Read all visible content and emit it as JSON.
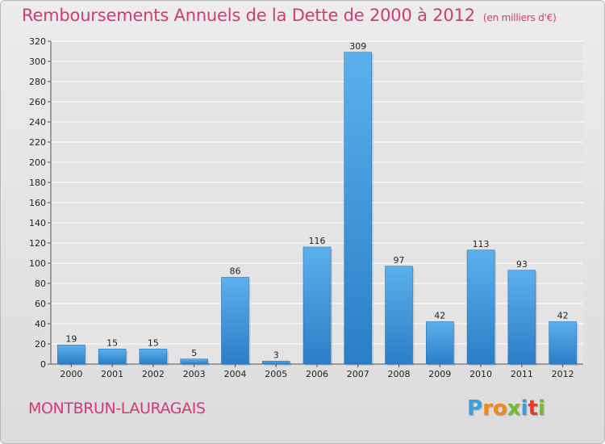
{
  "chart_data": {
    "type": "bar",
    "title": "Remboursements Annuels de la Dette de 2000 à 2012",
    "unit": "(en milliers d'€)",
    "categories": [
      "2000",
      "2001",
      "2002",
      "2003",
      "2004",
      "2005",
      "2006",
      "2007",
      "2008",
      "2009",
      "2010",
      "2011",
      "2012"
    ],
    "values": [
      19,
      15,
      15,
      5,
      86,
      3,
      116,
      309,
      97,
      42,
      113,
      93,
      42
    ],
    "yticks": [
      0,
      20,
      40,
      60,
      80,
      100,
      120,
      140,
      160,
      180,
      200,
      220,
      240,
      260,
      280,
      300,
      320
    ],
    "ylim": [
      0,
      320
    ],
    "grid": true,
    "bar_color": "#3b95d8"
  },
  "commune": "MONTBRUN-LAURAGAIS",
  "logo": {
    "letters": [
      "P",
      "r",
      "o",
      "x",
      "i",
      "t",
      "i"
    ],
    "colors": [
      "#3aa0d8",
      "#f08a1c",
      "#f08a1c",
      "#7ab82e",
      "#3aa0d8",
      "#e83a2a",
      "#7ab82e"
    ]
  }
}
